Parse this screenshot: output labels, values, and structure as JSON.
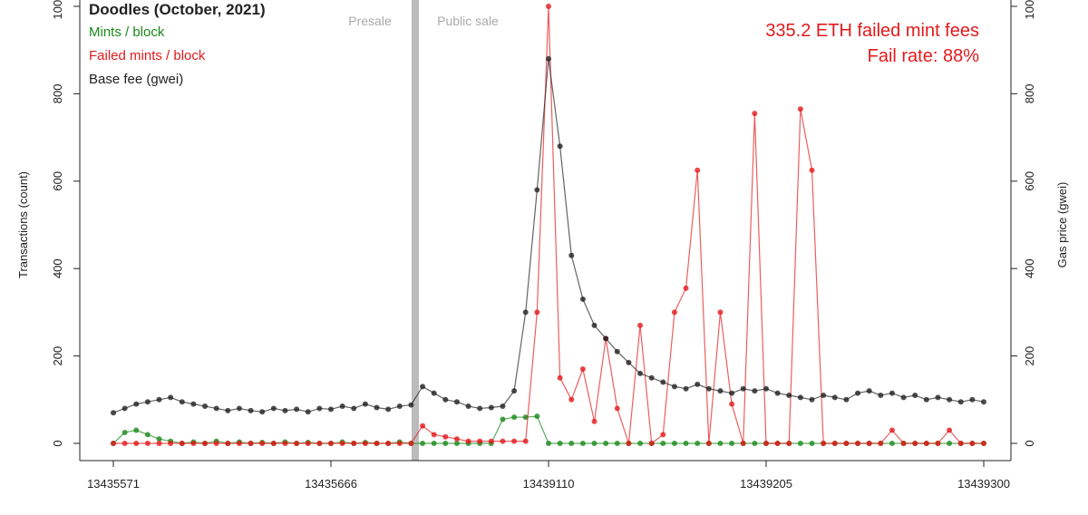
{
  "chart_data": {
    "type": "line",
    "title": "Doodles (October, 2021)",
    "y_label": "Transactions (count)",
    "y2_label": "Gas price (gwei)",
    "annotations": [
      "Presale",
      "Public sale",
      "335.2 ETH failed mint fees",
      "Fail rate: 88%"
    ],
    "x": [
      0,
      5,
      10,
      15,
      20,
      25,
      30,
      35,
      40,
      45,
      50,
      55,
      60,
      65,
      70,
      75,
      80,
      85,
      90,
      95,
      100,
      105,
      110,
      115,
      120,
      125,
      130,
      135,
      140,
      145,
      150,
      155,
      160,
      165,
      170,
      175,
      180,
      185,
      190,
      195,
      200,
      205,
      210,
      215,
      220,
      225,
      230,
      235,
      240,
      245,
      250,
      255,
      260,
      265,
      270,
      275,
      280,
      285,
      290,
      295,
      300,
      305,
      310,
      315,
      320,
      325,
      330,
      335,
      340,
      345,
      350,
      355,
      360,
      365,
      370,
      375,
      380
    ],
    "xlim": [
      -15,
      395
    ],
    "xticks": [
      {
        "value": 0,
        "label": "13435571"
      },
      {
        "value": 95,
        "label": "13435666"
      },
      {
        "value": 190,
        "label": "13439110"
      },
      {
        "value": 285,
        "label": "13439205"
      },
      {
        "value": 380,
        "label": "13439300"
      }
    ],
    "ylim": [
      0,
      1000
    ],
    "yticks": [
      0,
      200,
      400,
      600,
      800,
      1000
    ],
    "y2lim": [
      0,
      1000
    ],
    "y2ticks": [
      0,
      200,
      400,
      600,
      800,
      1000
    ],
    "series": [
      {
        "name": "Mints / block",
        "color": "#1a8a1a",
        "values": [
          0,
          25,
          30,
          20,
          10,
          5,
          0,
          3,
          0,
          5,
          0,
          3,
          0,
          2,
          0,
          3,
          0,
          2,
          0,
          0,
          3,
          0,
          2,
          0,
          0,
          3,
          0,
          0,
          0,
          0,
          0,
          0,
          0,
          0,
          55,
          60,
          60,
          62,
          0,
          0,
          0,
          0,
          0,
          0,
          0,
          0,
          0,
          0,
          0,
          0,
          0,
          0,
          0,
          0,
          0,
          0,
          0,
          0,
          0,
          0,
          0,
          0,
          0,
          0,
          0,
          0,
          0,
          0,
          0,
          0,
          0,
          0,
          0,
          0,
          0,
          0,
          0
        ]
      },
      {
        "name": "Failed mints / block",
        "color": "#e31a1c",
        "values": [
          0,
          0,
          0,
          0,
          0,
          0,
          0,
          0,
          0,
          0,
          0,
          0,
          0,
          0,
          0,
          0,
          0,
          0,
          0,
          0,
          0,
          0,
          0,
          0,
          0,
          0,
          0,
          40,
          20,
          15,
          10,
          5,
          5,
          5,
          5,
          5,
          5,
          300,
          1000,
          150,
          100,
          170,
          50,
          240,
          80,
          0,
          270,
          0,
          20,
          300,
          355,
          625,
          0,
          300,
          90,
          0,
          755,
          0,
          0,
          0,
          765,
          625,
          0,
          0,
          0,
          0,
          0,
          0,
          30,
          0,
          0,
          0,
          0,
          30,
          0,
          0,
          0
        ]
      },
      {
        "name": "Base fee (gwei)",
        "color": "#222222",
        "axis": "y2",
        "values": [
          70,
          80,
          90,
          95,
          100,
          105,
          95,
          90,
          85,
          80,
          75,
          80,
          75,
          72,
          80,
          75,
          78,
          72,
          80,
          78,
          85,
          80,
          90,
          82,
          78,
          85,
          88,
          130,
          115,
          100,
          95,
          85,
          80,
          82,
          85,
          120,
          300,
          580,
          880,
          680,
          430,
          330,
          270,
          240,
          210,
          185,
          160,
          150,
          140,
          130,
          125,
          135,
          125,
          120,
          115,
          125,
          120,
          125,
          115,
          110,
          105,
          100,
          110,
          105,
          100,
          115,
          120,
          110,
          115,
          105,
          110,
          100,
          105,
          100,
          95,
          100,
          95
        ]
      }
    ]
  }
}
